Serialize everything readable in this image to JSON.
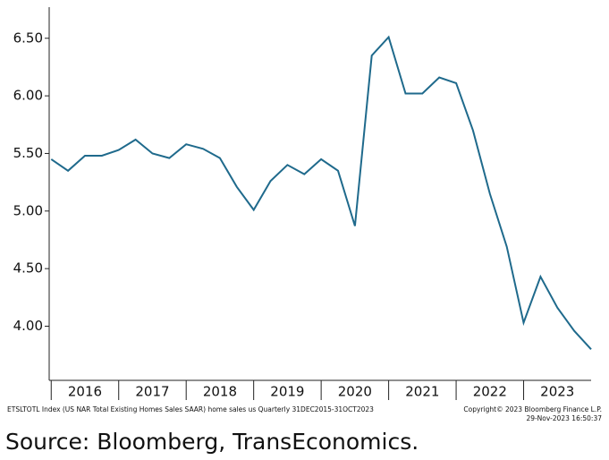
{
  "chart_data": {
    "type": "line",
    "x": [
      2016.0,
      2016.25,
      2016.5,
      2016.75,
      2017.0,
      2017.25,
      2017.5,
      2017.75,
      2018.0,
      2018.25,
      2018.5,
      2018.75,
      2019.0,
      2019.25,
      2019.5,
      2019.75,
      2020.0,
      2020.25,
      2020.5,
      2020.75,
      2021.0,
      2021.25,
      2021.5,
      2021.75,
      2022.0,
      2022.25,
      2022.5,
      2022.75,
      2023.0,
      2023.25,
      2023.5,
      2023.75,
      2024.0
    ],
    "series": [
      {
        "name": "ETSLTOTL Index",
        "color": "#1f6a8c",
        "values": [
          5.45,
          5.35,
          5.48,
          5.48,
          5.53,
          5.62,
          5.5,
          5.46,
          5.58,
          5.54,
          5.46,
          5.21,
          5.01,
          5.26,
          5.4,
          5.32,
          5.45,
          5.35,
          4.87,
          6.35,
          6.51,
          6.02,
          6.02,
          6.16,
          6.11,
          5.7,
          5.15,
          4.69,
          4.03,
          4.43,
          4.16,
          3.96,
          3.8
        ]
      }
    ],
    "xlim": [
      2015.97,
      2024.0
    ],
    "xticks": [
      {
        "value": 2016,
        "label": "2016"
      },
      {
        "value": 2017,
        "label": "2017"
      },
      {
        "value": 2018,
        "label": "2018"
      },
      {
        "value": 2019,
        "label": "2019"
      },
      {
        "value": 2020,
        "label": "2020"
      },
      {
        "value": 2021,
        "label": "2021"
      },
      {
        "value": 2022,
        "label": "2022"
      },
      {
        "value": 2023,
        "label": "2023"
      }
    ],
    "ylim": [
      3.53,
      6.77
    ],
    "yticks": [
      {
        "value": 4.0,
        "label": "4.00"
      },
      {
        "value": 4.5,
        "label": "4.50"
      },
      {
        "value": 5.0,
        "label": "5.00"
      },
      {
        "value": 5.5,
        "label": "5.50"
      },
      {
        "value": 6.0,
        "label": "6.00"
      },
      {
        "value": 6.5,
        "label": "6.50"
      }
    ],
    "grid": false,
    "footnote_left": "ETSLTOTL Index (US NAR Total Existing Homes Sales SAAR) home sales us  Quarterly 31DEC2015-31OCT2023",
    "copyright": "Copyright© 2023 Bloomberg Finance L.P.",
    "timestamp": "29-Nov-2023 16:50:37",
    "source": "Source: Bloomberg, TransEconomics."
  }
}
